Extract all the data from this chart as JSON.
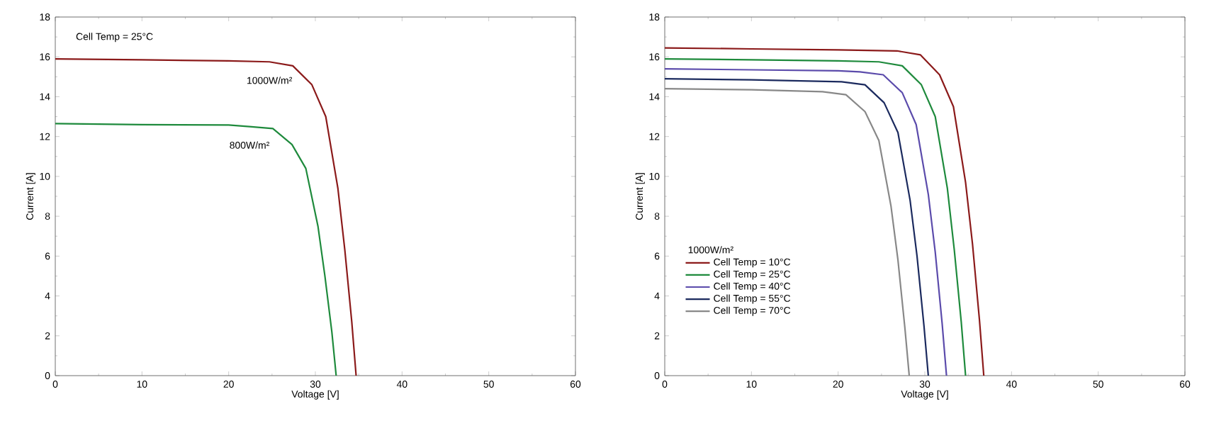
{
  "chart_data": [
    {
      "type": "line",
      "xlabel": "Voltage [V]",
      "ylabel": "Current [A]",
      "xlim": [
        0,
        60
      ],
      "ylim": [
        0,
        18
      ],
      "xticks": [
        0,
        10,
        20,
        30,
        40,
        50,
        60
      ],
      "yticks": [
        0,
        2,
        4,
        6,
        8,
        10,
        12,
        14,
        16,
        18
      ],
      "legend": false,
      "annotations": [
        "Cell Temp = 25°C"
      ],
      "series": [
        {
          "name": "1000W/m²",
          "color": "#8b1a1a",
          "x": [
            0,
            10,
            20,
            24.7,
            27.4,
            29.6,
            31.2,
            32.6,
            33.4,
            34.2,
            34.7
          ],
          "values": [
            15.9,
            15.85,
            15.8,
            15.75,
            15.55,
            14.6,
            13.0,
            9.4,
            6.3,
            2.7,
            0
          ]
        },
        {
          "name": "800W/m²",
          "color": "#1e8a3c",
          "x": [
            0,
            10,
            20,
            22.4,
            25.1,
            27.3,
            28.9,
            30.3,
            31.1,
            31.9,
            32.4
          ],
          "values": [
            12.65,
            12.6,
            12.58,
            12.5,
            12.4,
            11.6,
            10.4,
            7.5,
            5.0,
            2.2,
            0
          ]
        }
      ]
    },
    {
      "type": "line",
      "xlabel": "Voltage [V]",
      "ylabel": "Current [A]",
      "xlim": [
        0,
        60
      ],
      "ylim": [
        0,
        18
      ],
      "xticks": [
        0,
        10,
        20,
        30,
        40,
        50,
        60
      ],
      "yticks": [
        0,
        2,
        4,
        6,
        8,
        10,
        12,
        14,
        16,
        18
      ],
      "legend": "bottom left",
      "legend_title": "1000W/m²",
      "series": [
        {
          "name": "Cell Temp = 10°C",
          "color": "#8b1a1a",
          "x": [
            0,
            10,
            20,
            26.8,
            29.5,
            31.7,
            33.3,
            34.7,
            35.5,
            36.3,
            36.8
          ],
          "values": [
            16.45,
            16.4,
            16.35,
            16.3,
            16.1,
            15.1,
            13.5,
            9.7,
            6.6,
            2.8,
            0
          ]
        },
        {
          "name": "Cell Temp = 25°C",
          "color": "#1e8a3c",
          "x": [
            0,
            10,
            20,
            24.7,
            27.4,
            29.6,
            31.2,
            32.6,
            33.4,
            34.2,
            34.7
          ],
          "values": [
            15.9,
            15.85,
            15.8,
            15.75,
            15.55,
            14.6,
            13.0,
            9.4,
            6.3,
            2.7,
            0
          ]
        },
        {
          "name": "Cell Temp = 40°C",
          "color": "#5b4bab",
          "x": [
            0,
            10,
            20,
            22.5,
            25.2,
            27.4,
            29.0,
            30.4,
            31.2,
            32.0,
            32.5
          ],
          "values": [
            15.4,
            15.35,
            15.3,
            15.25,
            15.1,
            14.2,
            12.6,
            9.1,
            6.2,
            2.6,
            0
          ]
        },
        {
          "name": "Cell Temp = 55°C",
          "color": "#1b2a5e",
          "x": [
            0,
            10,
            20.4,
            23.1,
            25.3,
            26.9,
            28.3,
            29.1,
            29.9,
            30.4
          ],
          "values": [
            14.9,
            14.85,
            14.75,
            14.6,
            13.7,
            12.2,
            8.8,
            6.0,
            2.5,
            0
          ]
        },
        {
          "name": "Cell Temp = 70°C",
          "color": "#888888",
          "x": [
            0,
            10,
            18.2,
            20.9,
            23.1,
            24.7,
            26.1,
            26.9,
            27.7,
            28.2
          ],
          "values": [
            14.4,
            14.35,
            14.25,
            14.1,
            13.25,
            11.8,
            8.5,
            5.8,
            2.4,
            0
          ]
        }
      ]
    }
  ]
}
